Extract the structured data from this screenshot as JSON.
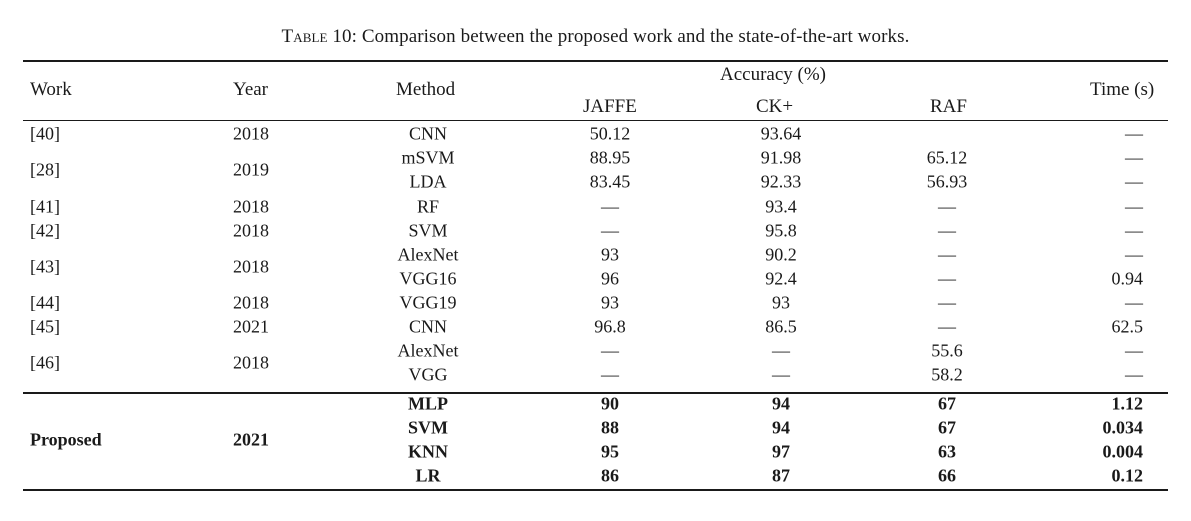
{
  "caption": {
    "label": "Table 10",
    "text": ": Comparison between the proposed work and the state-of-the-art works."
  },
  "headers": {
    "work": "Work",
    "year": "Year",
    "method": "Method",
    "accuracy": "Accuracy (%)",
    "jaffe": "JAFFE",
    "ck": "CK+",
    "raf": "RAF",
    "time": "Time (s)"
  },
  "groups": [
    {
      "work": "[40]",
      "year": "2018",
      "rows": [
        {
          "method": "CNN",
          "jaffe": "50.12",
          "ck": "93.64",
          "raf": "",
          "time": "—"
        }
      ]
    },
    {
      "work": "[28]",
      "year": "2019",
      "rows": [
        {
          "method": "mSVM",
          "jaffe": "88.95",
          "ck": "91.98",
          "raf": "65.12",
          "time": "—"
        },
        {
          "method": "LDA",
          "jaffe": "83.45",
          "ck": "92.33",
          "raf": "56.93",
          "time": "—"
        }
      ]
    },
    {
      "work": "[41]",
      "year": "2018",
      "rows": [
        {
          "method": "RF",
          "jaffe": "—",
          "ck": "93.4",
          "raf": "—",
          "time": "—"
        }
      ]
    },
    {
      "work": "[42]",
      "year": "2018",
      "rows": [
        {
          "method": "SVM",
          "jaffe": "—",
          "ck": "95.8",
          "raf": "—",
          "time": "—"
        }
      ]
    },
    {
      "work": "[43]",
      "year": "2018",
      "rows": [
        {
          "method": "AlexNet",
          "jaffe": "93",
          "ck": "90.2",
          "raf": "—",
          "time": "—"
        },
        {
          "method": "VGG16",
          "jaffe": "96",
          "ck": "92.4",
          "raf": "—",
          "time": "0.94"
        }
      ]
    },
    {
      "work": "[44]",
      "year": "2018",
      "rows": [
        {
          "method": "VGG19",
          "jaffe": "93",
          "ck": "93",
          "raf": "—",
          "time": "—"
        }
      ]
    },
    {
      "work": "[45]",
      "year": "2021",
      "rows": [
        {
          "method": "CNN",
          "jaffe": "96.8",
          "ck": "86.5",
          "raf": "—",
          "time": "62.5"
        }
      ]
    },
    {
      "work": "[46]",
      "year": "2018",
      "rows": [
        {
          "method": "AlexNet",
          "jaffe": "—",
          "ck": "—",
          "raf": "55.6",
          "time": "—"
        },
        {
          "method": "VGG",
          "jaffe": "—",
          "ck": "—",
          "raf": "58.2",
          "time": "—"
        }
      ]
    },
    {
      "work": "Proposed",
      "year": "2021",
      "bold": true,
      "rows": [
        {
          "method": "MLP",
          "jaffe": "90",
          "ck": "94",
          "raf": "67",
          "time": "1.12"
        },
        {
          "method": "SVM",
          "jaffe": "88",
          "ck": "94",
          "raf": "67",
          "time": "0.034"
        },
        {
          "method": "KNN",
          "jaffe": "95",
          "ck": "97",
          "raf": "63",
          "time": "0.004"
        },
        {
          "method": "LR",
          "jaffe": "86",
          "ck": "87",
          "raf": "66",
          "time": "0.12"
        }
      ]
    }
  ]
}
